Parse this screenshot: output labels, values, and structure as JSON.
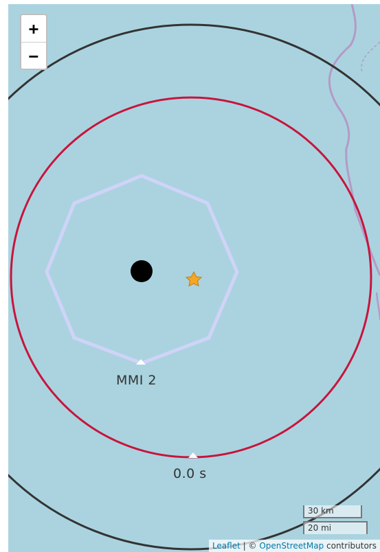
{
  "map": {
    "background_color": "#aad3df",
    "zoom": {
      "zoom_in_label": "+",
      "zoom_out_label": "−"
    },
    "contours": {
      "mmi_label": "MMI 2",
      "mmi_color": "#d0d3f8",
      "time_label": "0.0 s",
      "time_inner_color": "#c8143c",
      "time_outer_color": "#333333"
    },
    "markers": {
      "station_icon": "black-circle-icon",
      "epicenter_icon": "star-icon",
      "epicenter_color": "#f5a623"
    },
    "boundary": {
      "color": "#b49ac6"
    },
    "scale": {
      "km_label": "30 km",
      "mi_label": "20 mi"
    },
    "attribution": {
      "leaflet": "Leaflet",
      "separator": "|",
      "copyright": "©",
      "osm": "OpenStreetMap",
      "contributors": "contributors"
    }
  }
}
